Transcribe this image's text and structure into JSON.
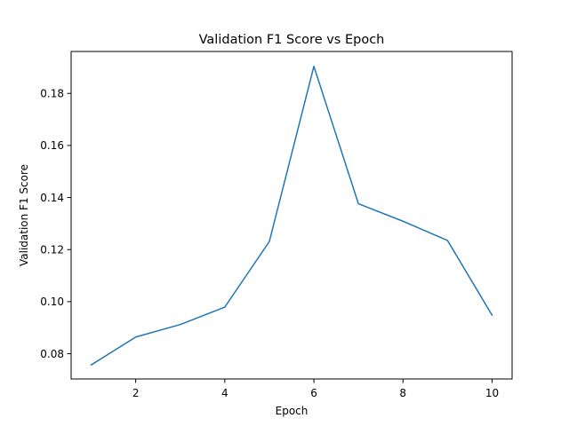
{
  "chart_data": {
    "type": "line",
    "title": "Validation F1 Score vs Epoch",
    "xlabel": "Epoch",
    "ylabel": "Validation F1 Score",
    "xlim": [
      0.55,
      10.45
    ],
    "ylim": [
      0.0703,
      0.1961
    ],
    "xticks": [
      2,
      4,
      6,
      8,
      10
    ],
    "yticks": [
      0.08,
      0.1,
      0.12,
      0.14,
      0.16,
      0.18
    ],
    "ytick_labels": [
      "0.08",
      "0.10",
      "0.12",
      "0.14",
      "0.16",
      "0.18"
    ],
    "grid": false,
    "series": [
      {
        "color": "#1f77b4",
        "x": [
          1,
          2,
          3,
          4,
          5,
          6,
          7,
          8,
          9,
          10
        ],
        "y": [
          0.0757,
          0.0864,
          0.0912,
          0.0979,
          0.1231,
          0.1904,
          0.1376,
          0.1309,
          0.1235,
          0.0948
        ]
      }
    ]
  }
}
